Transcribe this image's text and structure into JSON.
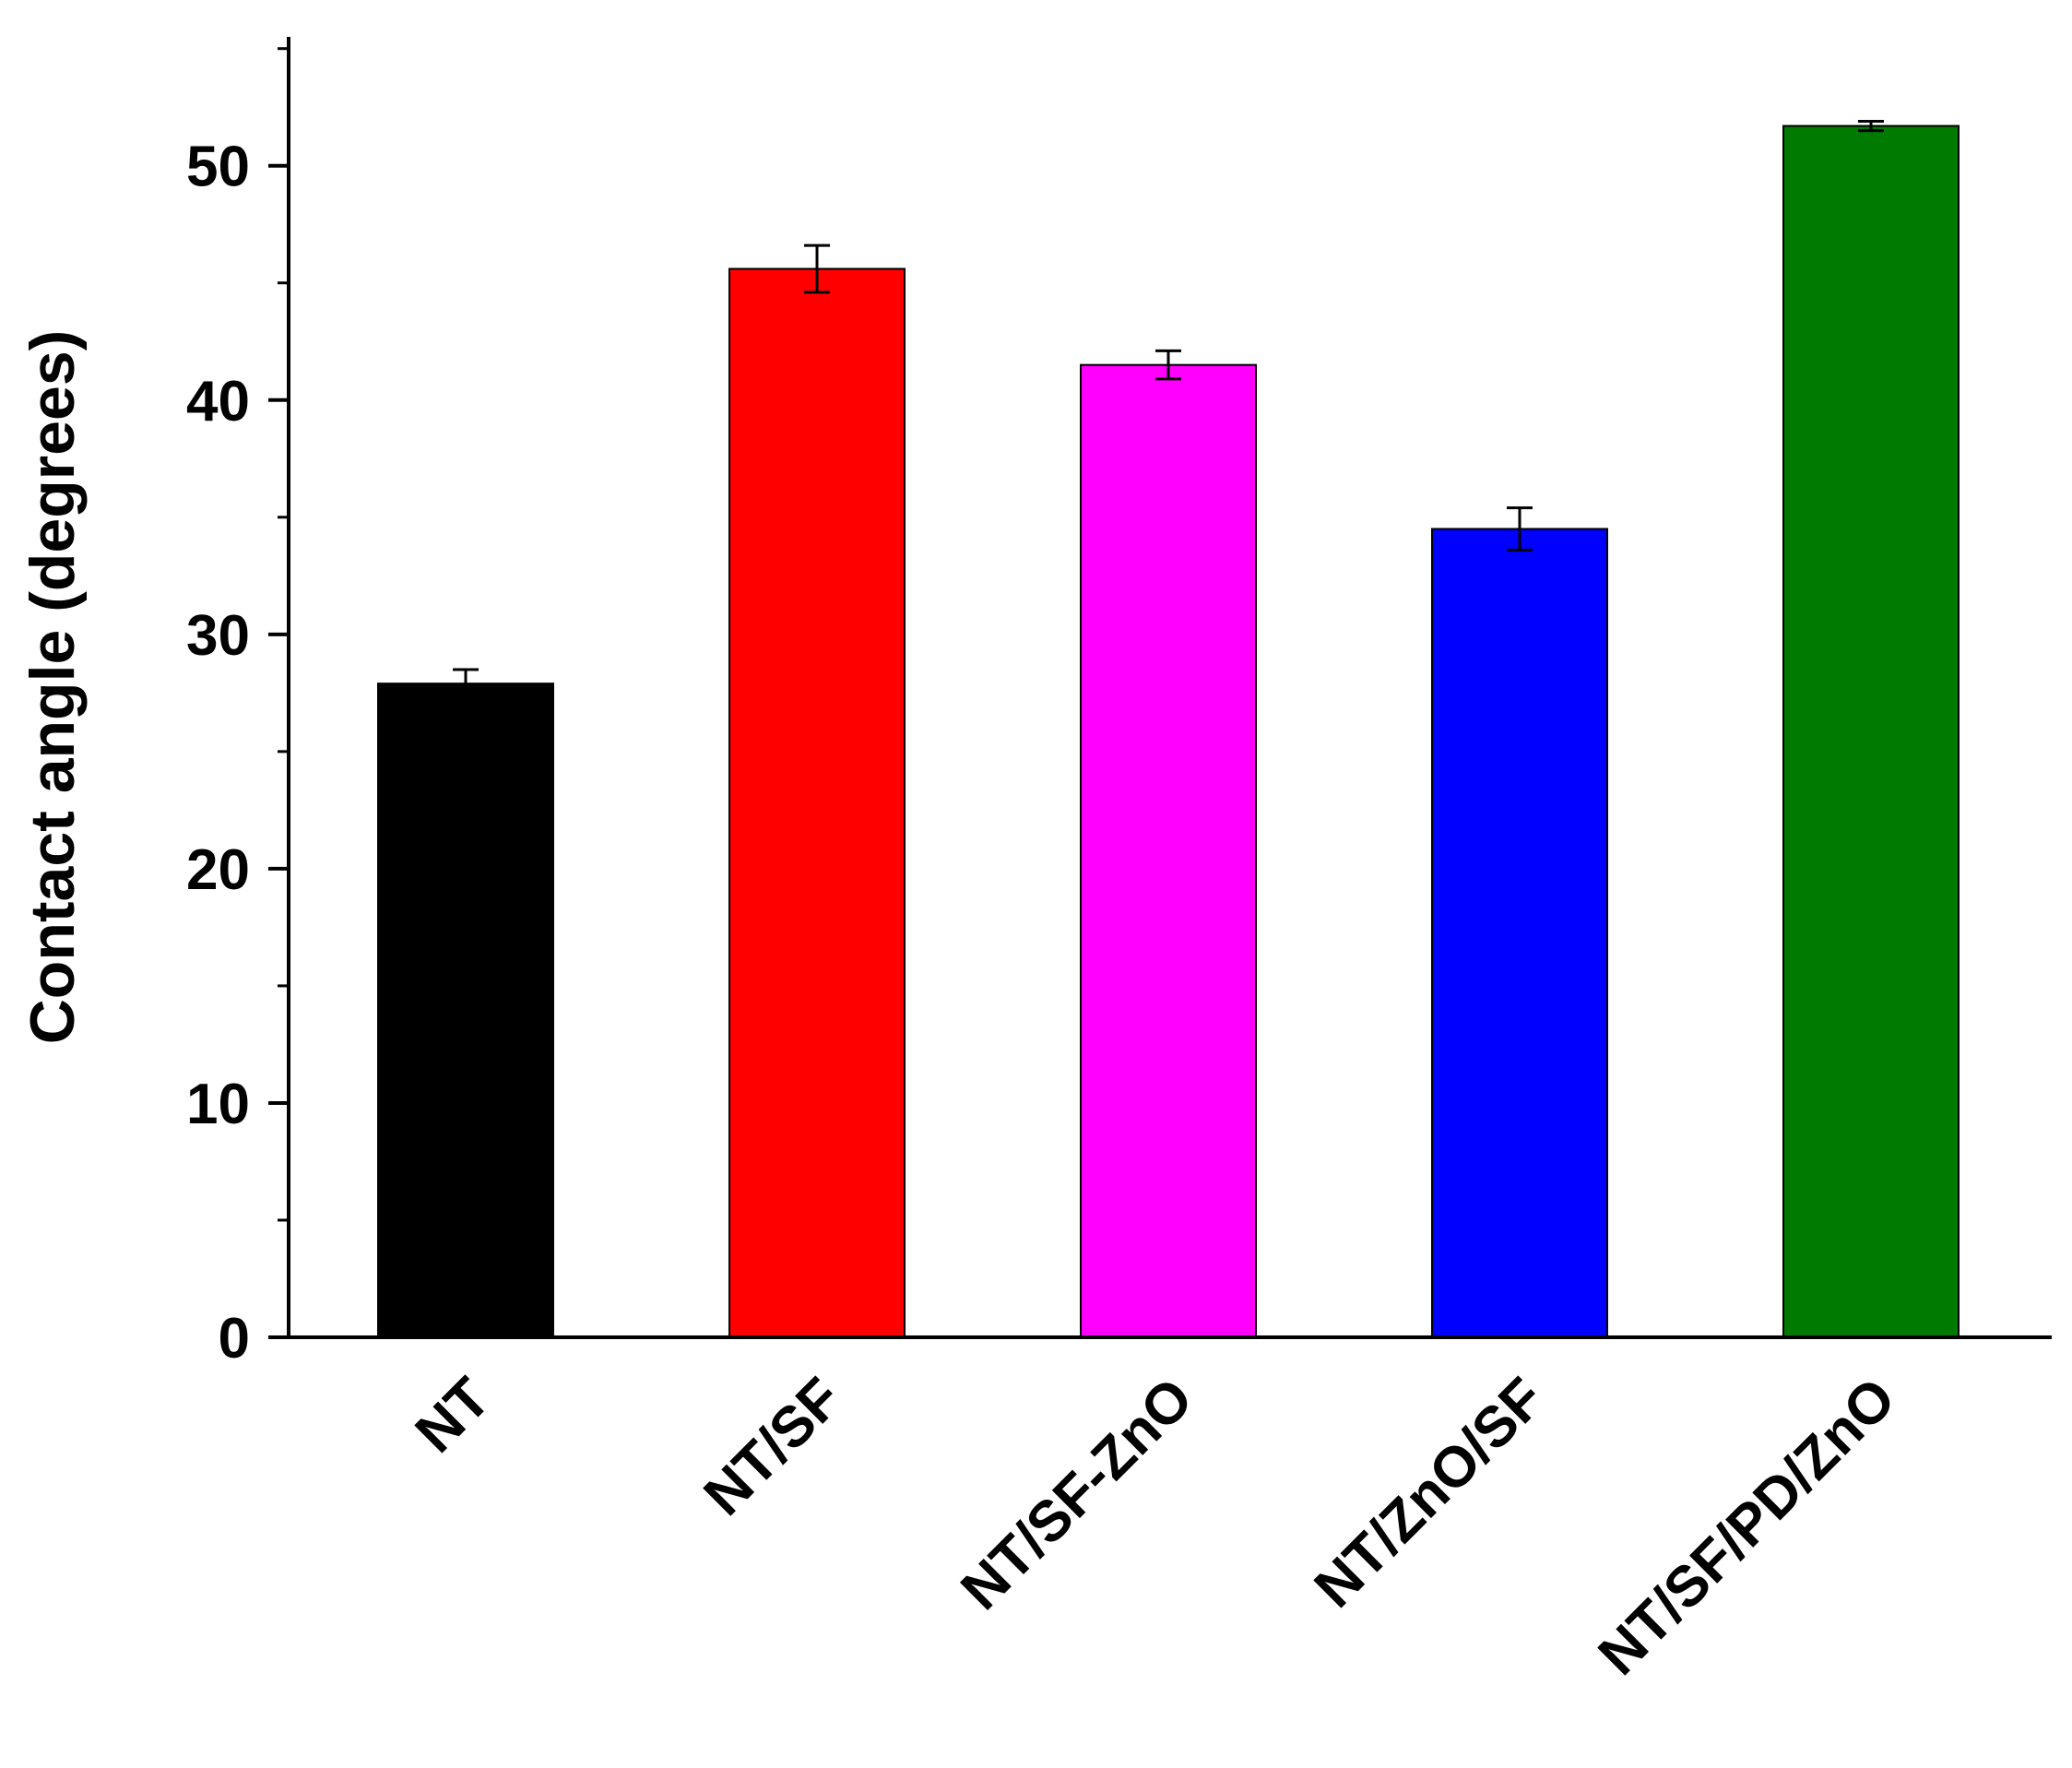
{
  "chart_data": {
    "type": "bar",
    "title": "",
    "xlabel": "",
    "ylabel": "Contact angle (degrees)",
    "categories": [
      "NT",
      "NT/SF",
      "NT/SF-ZnO",
      "NT/ZnO/SF",
      "NT/SF/PD/ZnO"
    ],
    "values": [
      27.9,
      45.6,
      41.5,
      34.5,
      51.7
    ],
    "errors": [
      0.6,
      1.0,
      0.6,
      0.9,
      0.2
    ],
    "colors": [
      "#000000",
      "#ff0000",
      "#ff00ff",
      "#0000ff",
      "#007a00"
    ],
    "ylim": [
      0,
      55.5
    ],
    "yticks": [
      0,
      10,
      20,
      30,
      40,
      50
    ],
    "yminor_step": 5,
    "grid": false,
    "legend": "none"
  }
}
